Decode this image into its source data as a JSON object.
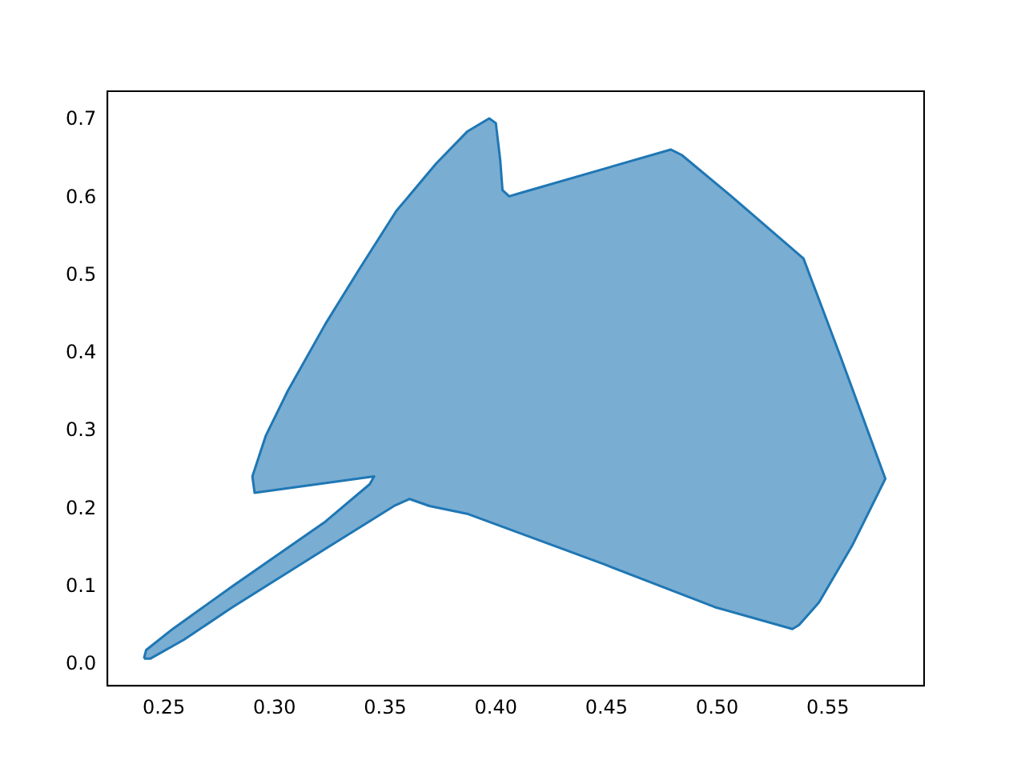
{
  "chart_data": {
    "type": "area",
    "xlim": [
      0.2245,
      0.5935
    ],
    "ylim": [
      -0.027,
      0.737
    ],
    "xticks": [
      0.25,
      {
        "value": 0.3,
        "label": "0.30"
      },
      0.35,
      {
        "value": 0.4,
        "label": "0.40"
      },
      0.45,
      {
        "value": 0.5,
        "label": "0.50"
      },
      0.55
    ],
    "yticks": [
      {
        "value": 0,
        "label": "0.0"
      },
      0.1,
      0.2,
      0.3,
      0.4,
      0.5,
      0.6,
      0.7
    ],
    "grid": false,
    "legend": false,
    "series": [
      {
        "color": "#1f77b4",
        "x": [
          0.241,
          0.242,
          0.254,
          0.281,
          0.323,
          0.343,
          0.345,
          0.291,
          0.29,
          0.296,
          0.306,
          0.323,
          0.338,
          0.355,
          0.373,
          0.387,
          0.397,
          0.4,
          0.402,
          0.403,
          0.406,
          0.412,
          0.479,
          0.484,
          0.506,
          0.539,
          0.556,
          0.576,
          0.561,
          0.546,
          0.537,
          0.534,
          0.499,
          0.449,
          0.387,
          0.37,
          0.361,
          0.354,
          0.323,
          0.281,
          0.259,
          0.244,
          0.241
        ],
        "values": [
          0.008,
          0.019,
          0.046,
          0.101,
          0.184,
          0.232,
          0.242,
          0.221,
          0.242,
          0.294,
          0.352,
          0.438,
          0.507,
          0.583,
          0.644,
          0.685,
          0.702,
          0.696,
          0.648,
          0.61,
          0.602,
          0.607,
          0.662,
          0.655,
          0.603,
          0.522,
          0.394,
          0.239,
          0.153,
          0.08,
          0.051,
          0.046,
          0.074,
          0.129,
          0.194,
          0.204,
          0.213,
          0.204,
          0.149,
          0.074,
          0.032,
          0.008,
          0.008
        ]
      }
    ]
  }
}
